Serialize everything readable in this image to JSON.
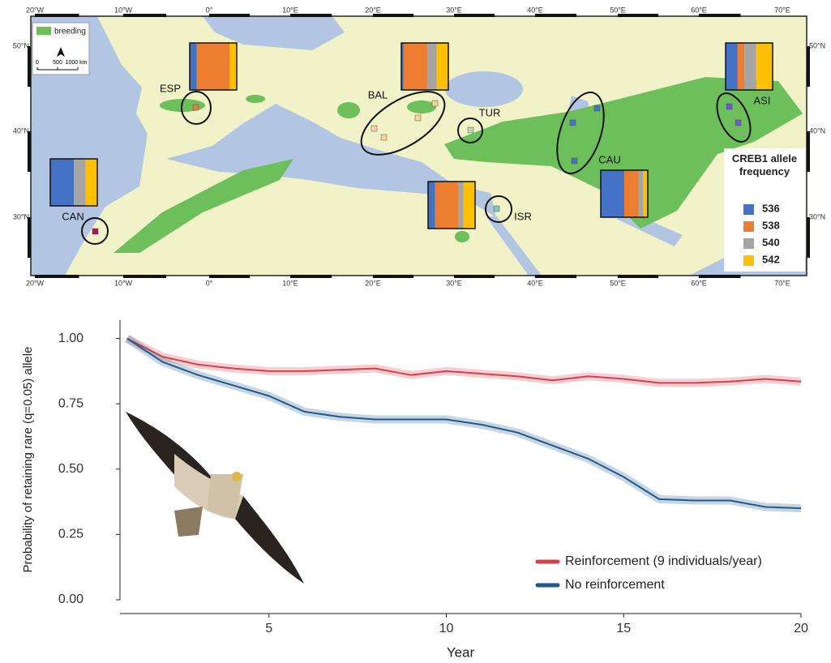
{
  "map": {
    "lon_labels": [
      "20°W",
      "10°W",
      "0°",
      "10°E",
      "20°E",
      "30°E",
      "40°E",
      "50°E",
      "60°E",
      "70°E"
    ],
    "lat_labels": [
      "50°N",
      "40°N",
      "30°N"
    ],
    "breeding_legend": "breeding",
    "scale_labels": [
      "0",
      "500",
      "1000 km"
    ],
    "legend_title": "CREB1 allele frequency",
    "alleles": [
      {
        "name": "536",
        "color": "#4472c4"
      },
      {
        "name": "538",
        "color": "#ed7d31"
      },
      {
        "name": "540",
        "color": "#a5a5a5"
      },
      {
        "name": "542",
        "color": "#ffc000"
      }
    ],
    "regions": [
      {
        "label": "ESP",
        "frequencies": [
          0.15,
          0.7,
          0,
          0.15
        ]
      },
      {
        "label": "BAL",
        "frequencies": [
          0.05,
          0.5,
          0.2,
          0.25
        ]
      },
      {
        "label": "TUR",
        "frequencies": null
      },
      {
        "label": "CAN",
        "frequencies": [
          0.5,
          0,
          0.25,
          0.25
        ]
      },
      {
        "label": "ISR",
        "frequencies": [
          0.15,
          0.5,
          0.1,
          0.25
        ]
      },
      {
        "label": "CAU",
        "frequencies": [
          0.5,
          0.3,
          0.1,
          0.1
        ]
      },
      {
        "label": "ASI",
        "frequencies": [
          0.25,
          0.15,
          0.25,
          0.35
        ]
      }
    ]
  },
  "chart_data": {
    "type": "line",
    "xlabel": "Year",
    "ylabel": "Probability of retaining rare (q=0.05) allele",
    "x": [
      1,
      2,
      3,
      4,
      5,
      6,
      7,
      8,
      9,
      10,
      11,
      12,
      13,
      14,
      15,
      16,
      17,
      18,
      19,
      20
    ],
    "series": [
      {
        "name": "Reinforcement (9 individuals/year)",
        "color": "#d6404a",
        "values": [
          1.0,
          0.93,
          0.9,
          0.885,
          0.875,
          0.875,
          0.88,
          0.885,
          0.86,
          0.875,
          0.865,
          0.855,
          0.84,
          0.855,
          0.845,
          0.83,
          0.83,
          0.835,
          0.845,
          0.835
        ]
      },
      {
        "name": "No reinforcement",
        "color": "#1f5a8c",
        "values": [
          1.0,
          0.91,
          0.86,
          0.82,
          0.78,
          0.72,
          0.7,
          0.69,
          0.69,
          0.69,
          0.67,
          0.64,
          0.59,
          0.54,
          0.47,
          0.385,
          0.38,
          0.38,
          0.355,
          0.35
        ]
      }
    ],
    "xlim": [
      0.8,
      20
    ],
    "ylim": [
      0,
      1.07
    ],
    "xticks": [
      5,
      10,
      15,
      20
    ],
    "yticks": [
      {
        "value": 0,
        "label": "0.00"
      },
      {
        "value": 0.25,
        "label": "0.25"
      },
      {
        "value": 0.5,
        "label": "0.50"
      },
      {
        "value": 0.75,
        "label": "0.75"
      },
      {
        "value": 1,
        "label": "1.00"
      }
    ],
    "legend": "lower right"
  }
}
